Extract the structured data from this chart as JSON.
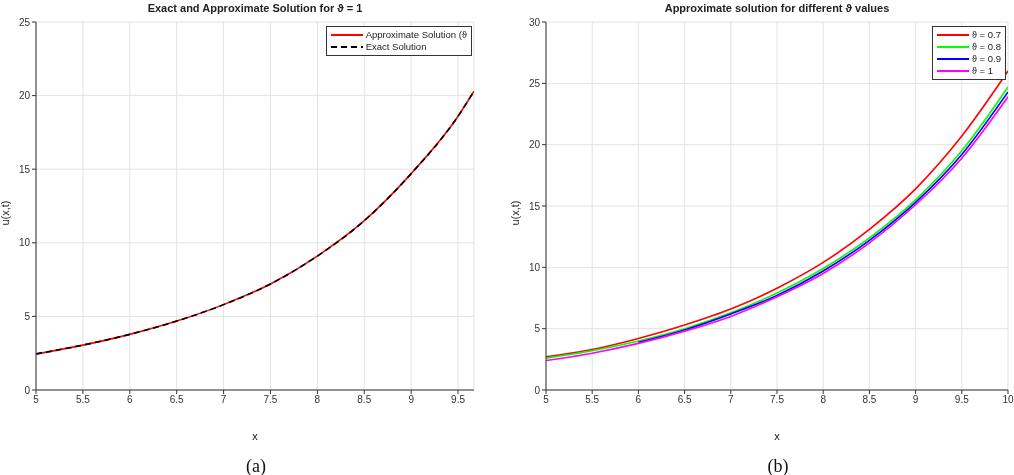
{
  "chart_data": [
    {
      "type": "line",
      "title": "Exact and Approximate Solution for ϑ = 1",
      "xlabel": "x",
      "ylabel": "u(x,t)",
      "annotations": [
        "(a)"
      ],
      "xlim": [
        5,
        9.67
      ],
      "xticks": [
        5,
        5.5,
        6,
        6.5,
        7,
        7.5,
        8,
        8.5,
        9,
        9.5
      ],
      "ylim": [
        0,
        25
      ],
      "yticks": [
        0,
        5,
        10,
        15,
        20,
        25
      ],
      "grid": true,
      "legend": "top right",
      "series": [
        {
          "name": "Approximate Solution (ϑ",
          "color": "#ff0000",
          "line_style": "solid",
          "x": [
            5,
            5.5,
            6,
            6.5,
            7,
            7.5,
            8,
            8.5,
            9,
            9.5,
            9.67
          ],
          "values": [
            2.45,
            3.05,
            3.78,
            4.68,
            5.8,
            7.2,
            9.1,
            11.5,
            14.7,
            18.6,
            20.3
          ]
        },
        {
          "name": "Exact Solution",
          "color": "#000000",
          "line_style": "dashed",
          "x": [
            5,
            5.5,
            6,
            6.5,
            7,
            7.5,
            8,
            8.5,
            9,
            9.5,
            9.67
          ],
          "values": [
            2.45,
            3.05,
            3.78,
            4.68,
            5.8,
            7.2,
            9.1,
            11.5,
            14.7,
            18.6,
            20.3
          ]
        }
      ]
    },
    {
      "type": "line",
      "title": "Approximate solution for different ϑ values",
      "xlabel": "x",
      "ylabel": "u(x,t)",
      "annotations": [
        "(b)"
      ],
      "xlim": [
        5,
        10
      ],
      "xticks": [
        5,
        5.5,
        6,
        6.5,
        7,
        7.5,
        8,
        8.5,
        9,
        9.5,
        10
      ],
      "ylim": [
        0,
        30
      ],
      "yticks": [
        0,
        5,
        10,
        15,
        20,
        25,
        30
      ],
      "grid": true,
      "legend": "top right",
      "x": [
        5,
        5.5,
        6,
        6.5,
        7,
        7.5,
        8,
        8.5,
        9,
        9.5,
        10
      ],
      "series": [
        {
          "name": "ϑ = 0.7",
          "color": "#ff0000",
          "values": [
            2.7,
            3.3,
            4.2,
            5.3,
            6.6,
            8.3,
            10.4,
            13.1,
            16.4,
            20.7,
            26.0
          ]
        },
        {
          "name": "ϑ = 0.8",
          "color": "#00ff00",
          "values": [
            2.6,
            3.2,
            4.0,
            5.0,
            6.3,
            7.9,
            9.9,
            12.4,
            15.5,
            19.5,
            24.7
          ]
        },
        {
          "name": "ϑ = 0.9",
          "color": "#0000ff",
          "values": [
            null,
            null,
            3.9,
            4.9,
            6.2,
            7.7,
            9.7,
            12.2,
            15.3,
            19.2,
            24.3
          ]
        },
        {
          "name": "ϑ = 1",
          "color": "#ff00ff",
          "values": [
            2.4,
            3.0,
            3.8,
            4.8,
            6.0,
            7.6,
            9.5,
            12.0,
            15.1,
            18.9,
            23.9
          ]
        }
      ]
    }
  ]
}
